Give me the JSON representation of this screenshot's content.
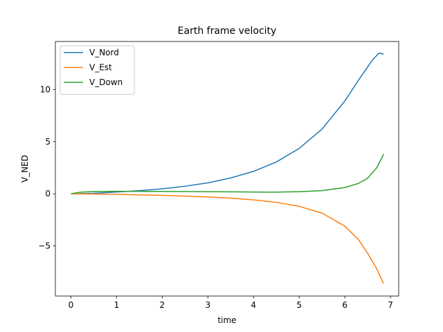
{
  "chart_data": {
    "type": "line",
    "title": "Earth frame velocity",
    "xlabel": "time",
    "ylabel": "V_NED",
    "xlim": [
      -0.34,
      7.18
    ],
    "ylim": [
      -9.8,
      14.6
    ],
    "xticks": [
      0,
      1,
      2,
      3,
      4,
      5,
      6,
      7
    ],
    "yticks": [
      -5,
      0,
      5,
      10
    ],
    "ytick_labels": [
      "−5",
      "0",
      "5",
      "10"
    ],
    "grid": false,
    "legend_position": "top-left",
    "series": [
      {
        "name": "V_Nord",
        "color": "#1f77b4",
        "x": [
          0,
          0.5,
          1,
          1.5,
          2,
          2.5,
          3,
          3.5,
          4,
          4.5,
          5,
          5.5,
          6,
          6.3,
          6.6,
          6.75,
          6.85
        ],
        "y": [
          0,
          0.05,
          0.17,
          0.3,
          0.48,
          0.73,
          1.05,
          1.52,
          2.15,
          3.05,
          4.35,
          6.2,
          8.9,
          10.9,
          12.8,
          13.5,
          13.4
        ]
      },
      {
        "name": "V_Est",
        "color": "#ff7f0e",
        "x": [
          0,
          0.5,
          1,
          1.5,
          2,
          2.5,
          3,
          3.5,
          4,
          4.5,
          5,
          5.5,
          6,
          6.3,
          6.5,
          6.7,
          6.85
        ],
        "y": [
          0,
          -0.02,
          -0.05,
          -0.1,
          -0.15,
          -0.22,
          -0.3,
          -0.42,
          -0.58,
          -0.82,
          -1.2,
          -1.85,
          -3.1,
          -4.4,
          -5.7,
          -7.2,
          -8.6
        ]
      },
      {
        "name": "V_Down",
        "color": "#2ca02c",
        "x": [
          0,
          0.2,
          0.5,
          1,
          2,
          3,
          4,
          4.5,
          5,
          5.5,
          6,
          6.3,
          6.5,
          6.7,
          6.85
        ],
        "y": [
          0,
          0.15,
          0.22,
          0.24,
          0.23,
          0.2,
          0.17,
          0.16,
          0.2,
          0.3,
          0.6,
          1.0,
          1.5,
          2.5,
          3.8
        ]
      }
    ]
  }
}
